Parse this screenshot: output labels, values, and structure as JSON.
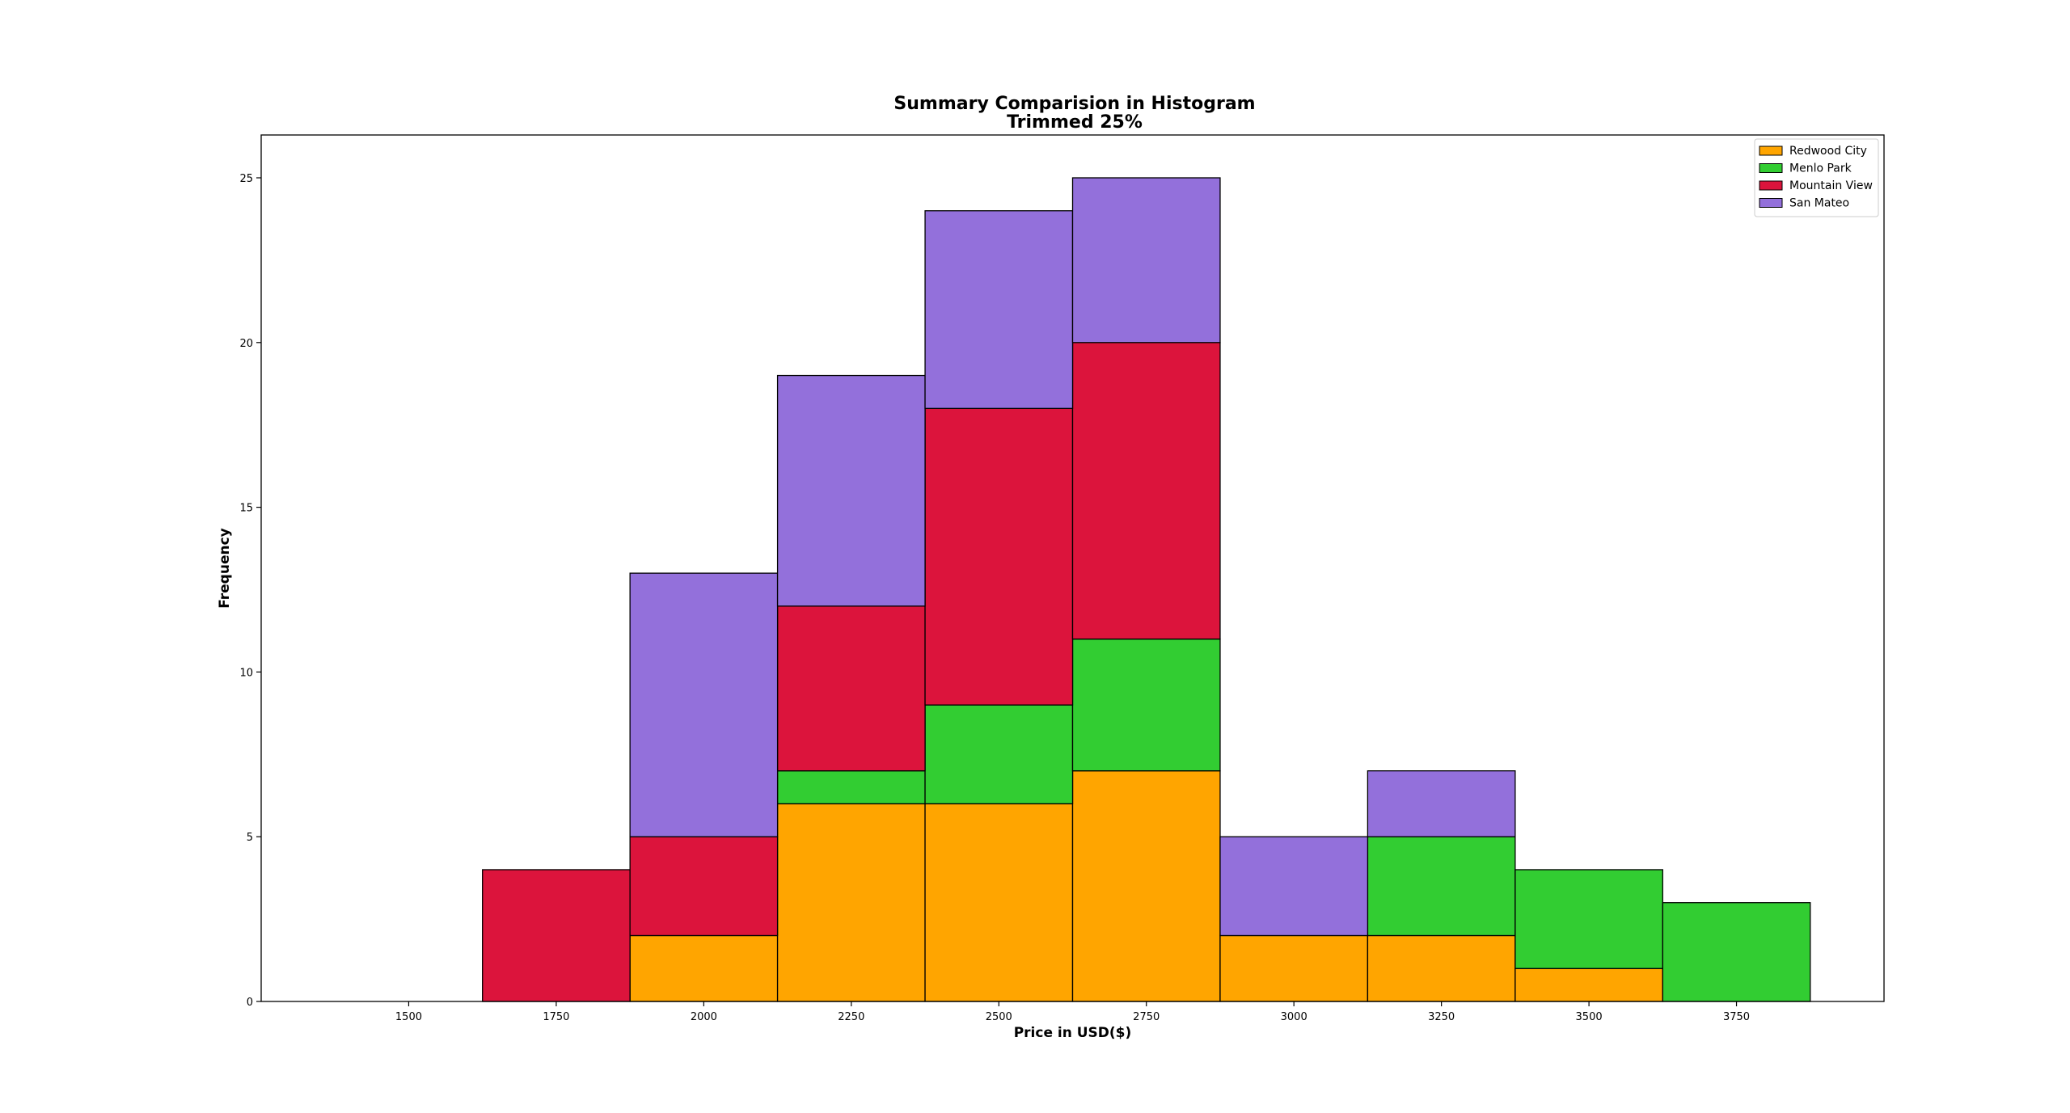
{
  "chart_data": {
    "type": "bar",
    "stacked": true,
    "title": "Summary Comparision in Histogram",
    "subtitle": "Trimmed 25%",
    "xlabel": "Price in USD($)",
    "ylabel": "Frequency",
    "bin_edges": [
      1375,
      1625,
      1875,
      2125,
      2375,
      2625,
      2875,
      3125,
      3375,
      3625,
      3875
    ],
    "xlim": [
      1250,
      4000
    ],
    "ylim": [
      0,
      26.3
    ],
    "x_ticks": [
      1500,
      1750,
      2000,
      2250,
      2500,
      2750,
      3000,
      3250,
      3500,
      3750
    ],
    "y_ticks": [
      0,
      5,
      10,
      15,
      20,
      25
    ],
    "grid": false,
    "legend_position": "top-right",
    "series": [
      {
        "name": "Redwood City",
        "color": "#ffa500",
        "values": [
          0,
          0,
          2,
          6,
          6,
          7,
          2,
          2,
          1,
          0
        ]
      },
      {
        "name": "Menlo Park",
        "color": "#32cd32",
        "values": [
          0,
          0,
          0,
          1,
          3,
          4,
          0,
          3,
          3,
          3
        ]
      },
      {
        "name": "Mountain View",
        "color": "#dc143c",
        "values": [
          0,
          4,
          3,
          5,
          9,
          9,
          0,
          0,
          0,
          0
        ]
      },
      {
        "name": "San Mateo",
        "color": "#9370db",
        "values": [
          0,
          0,
          8,
          7,
          6,
          5,
          3,
          2,
          0,
          0
        ]
      }
    ]
  }
}
